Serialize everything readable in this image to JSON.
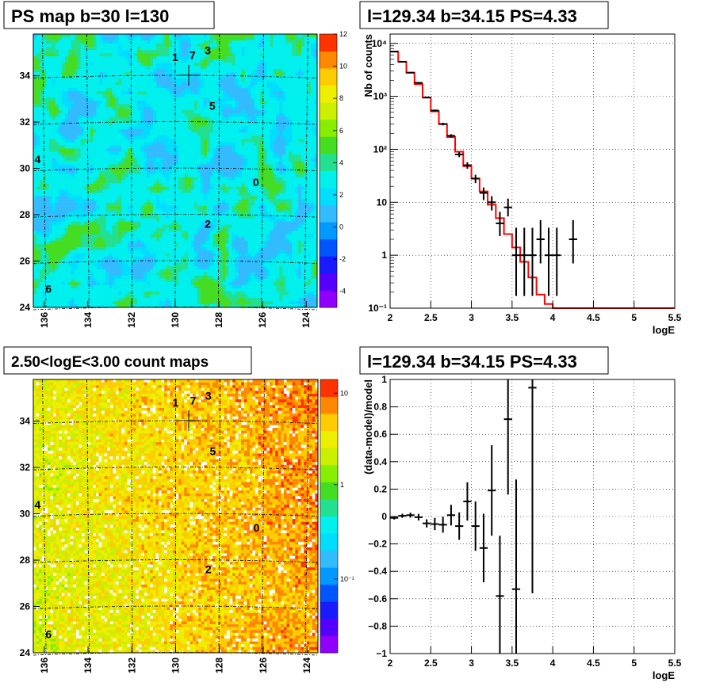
{
  "panels": {
    "ps_map": {
      "title": "PS map b=30 l=130",
      "x_ticks": [
        "136",
        "134",
        "132",
        "130",
        "128",
        "126",
        "124"
      ],
      "y_ticks": [
        "24",
        "26",
        "28",
        "30",
        "32",
        "34"
      ],
      "z_ticks": [
        "-4",
        "-2",
        "0",
        "2",
        "4",
        "6",
        "8",
        "10",
        "12"
      ],
      "sources": [
        {
          "label": "1",
          "l": 130.0,
          "b": 34.8
        },
        {
          "label": "7",
          "l": 129.2,
          "b": 34.9
        },
        {
          "label": "3",
          "l": 128.5,
          "b": 35.1
        },
        {
          "label": "5",
          "l": 128.3,
          "b": 32.7
        },
        {
          "label": "4",
          "l": 136.3,
          "b": 30.4
        },
        {
          "label": "0",
          "l": 126.3,
          "b": 29.4
        },
        {
          "label": "2",
          "l": 128.5,
          "b": 27.6
        },
        {
          "label": "6",
          "l": 135.8,
          "b": 24.8
        }
      ],
      "cross": {
        "l": 129.34,
        "b": 34.15
      },
      "palette": [
        "#8f00ff",
        "#5500ff",
        "#1a1aff",
        "#0055ff",
        "#0099ff",
        "#33bbff",
        "#00ddff",
        "#00f0ee",
        "#22e090",
        "#44dd22",
        "#88ee00",
        "#ccee00",
        "#eeee00",
        "#ffcc00",
        "#ff8800",
        "#ff3300"
      ],
      "background_color": "#00eef0",
      "l_range": [
        136.5,
        123.5
      ],
      "b_range": [
        24,
        35.8
      ]
    },
    "spectrum": {
      "title": "l=129.34 b=34.15 PS=4.33",
      "xlabel": "logE",
      "ylabel": "Nb of counts",
      "x_ticks": [
        "2",
        "2.5",
        "3",
        "3.5",
        "4",
        "4.5",
        "5",
        "5.5"
      ],
      "y_ticks": [
        "10⁻¹",
        "1",
        "10",
        "10²",
        "10³",
        "10⁴"
      ],
      "model_color": "#ff0000"
    },
    "count_map": {
      "title": "2.50<logE<3.00 count maps",
      "x_ticks": [
        "136",
        "134",
        "132",
        "130",
        "128",
        "126",
        "124"
      ],
      "y_ticks": [
        "24",
        "26",
        "28",
        "30",
        "32",
        "34"
      ],
      "z_ticks": [
        "10⁻¹",
        "1",
        "10"
      ],
      "palette": [
        "#8f00ff",
        "#5500ff",
        "#1a1aff",
        "#0055ff",
        "#0099ff",
        "#33bbff",
        "#00ddff",
        "#00f0ee",
        "#22e090",
        "#44dd22",
        "#88ee00",
        "#ccee00",
        "#eeee00",
        "#ffcc00",
        "#ff8800",
        "#ff3300"
      ]
    },
    "residual": {
      "title": "l=129.34 b=34.15 PS=4.33",
      "xlabel": "logE",
      "ylabel": "(data-model)/model",
      "x_ticks": [
        "2",
        "2.5",
        "3",
        "3.5",
        "4",
        "4.5",
        "5",
        "5.5"
      ],
      "y_ticks": [
        "−1",
        "−0.8",
        "−0.6",
        "−0.4",
        "−0.2",
        "0",
        "0.2",
        "0.4",
        "0.6",
        "0.8",
        "1"
      ]
    }
  },
  "chart_data": [
    {
      "type": "heatmap",
      "title": "PS map b=30 l=130",
      "x_ticks": [
        136,
        134,
        132,
        130,
        128,
        126,
        124
      ],
      "y_ticks": [
        24,
        26,
        28,
        30,
        32,
        34
      ],
      "xlim": [
        136.5,
        123.5
      ],
      "ylim": [
        24,
        35.8
      ],
      "zlim": [
        -5,
        12
      ],
      "z_ticks": [
        -4,
        -2,
        0,
        2,
        4,
        6,
        8,
        10,
        12
      ],
      "source_labels": [
        "1",
        "7",
        "3",
        "5",
        "4",
        "0",
        "2",
        "6"
      ]
    },
    {
      "type": "line",
      "title": "l=129.34 b=34.15 PS=4.33",
      "xlabel": "logE",
      "ylabel": "Nb of counts",
      "xlim": [
        2,
        5.5
      ],
      "ylim": [
        0.1,
        15000
      ],
      "yscale": "log",
      "grid": true,
      "series": [
        {
          "kind": "histogram",
          "bin_edges": [
            2.0,
            2.1,
            2.2,
            2.3,
            2.4,
            2.5,
            2.6,
            2.7,
            2.8,
            2.9,
            3.0,
            3.1,
            3.2,
            3.3,
            3.4,
            3.5,
            3.6,
            3.7,
            3.8,
            3.9,
            4.0,
            4.1,
            4.2,
            4.3,
            4.4,
            4.5,
            4.6,
            4.7,
            4.8,
            4.9,
            5.0,
            5.1,
            5.2,
            5.3,
            5.4,
            5.5
          ],
          "values": [
            7000,
            4500,
            2800,
            1700,
            950,
            520,
            300,
            170,
            90,
            48,
            28,
            16,
            9,
            5,
            2.5,
            1.4,
            0.75,
            0.38,
            0.18,
            0.12,
            0.1,
            0.1,
            0.1,
            0.1,
            0.1,
            0.1,
            0.1,
            0.1,
            0.1,
            0.1,
            0.1,
            0.1,
            0.1,
            0.1,
            0.1
          ]
        },
        {
          "kind": "points",
          "x": [
            2.05,
            2.15,
            2.25,
            2.35,
            2.45,
            2.55,
            2.65,
            2.75,
            2.85,
            2.95,
            3.05,
            3.15,
            3.25,
            3.35,
            3.45,
            3.55,
            3.65,
            3.75,
            3.85,
            3.95,
            4.05,
            4.25
          ],
          "y": [
            7000,
            4500,
            2800,
            1800,
            950,
            540,
            300,
            180,
            80,
            50,
            28,
            15,
            10,
            4,
            8,
            1,
            1,
            1,
            2,
            1,
            1,
            2
          ],
          "err_low": [
            80,
            65,
            50,
            40,
            30,
            23,
            17,
            13,
            9,
            7,
            5,
            4,
            3,
            1.7,
            2.6,
            0.83,
            0.83,
            0.83,
            1.3,
            0.83,
            0.83,
            1.3
          ],
          "err_high": [
            80,
            65,
            50,
            40,
            30,
            23,
            17,
            13,
            9,
            7,
            5,
            4,
            3,
            2.6,
            3.7,
            2.3,
            2.3,
            2.3,
            2.6,
            2.3,
            2.3,
            2.6
          ]
        }
      ]
    },
    {
      "type": "heatmap",
      "title": "2.50<logE<3.00 count maps",
      "x_ticks": [
        136,
        134,
        132,
        130,
        128,
        126,
        124
      ],
      "y_ticks": [
        24,
        26,
        28,
        30,
        32,
        34
      ],
      "xlim": [
        136.5,
        123.5
      ],
      "ylim": [
        24,
        35.8
      ],
      "zscale": "log",
      "z_ticks": [
        0.1,
        1,
        10
      ],
      "source_labels": [
        "1",
        "7",
        "3",
        "5",
        "4",
        "0",
        "2",
        "6"
      ]
    },
    {
      "type": "scatter",
      "title": "l=129.34 b=34.15 PS=4.33",
      "xlabel": "logE",
      "ylabel": "(data-model)/model",
      "xlim": [
        2,
        5.5
      ],
      "ylim": [
        -1,
        1
      ],
      "grid": true,
      "x": [
        2.05,
        2.15,
        2.25,
        2.35,
        2.45,
        2.55,
        2.65,
        2.75,
        2.85,
        2.95,
        3.05,
        3.15,
        3.25,
        3.35,
        3.45,
        3.55,
        3.75
      ],
      "y": [
        -0.01,
        0.005,
        0.01,
        -0.005,
        -0.05,
        -0.055,
        -0.06,
        0.01,
        -0.07,
        0.11,
        -0.07,
        -0.23,
        0.19,
        -0.58,
        0.71,
        -0.53,
        0.94
      ],
      "err": [
        0.012,
        0.015,
        0.018,
        0.024,
        0.03,
        0.044,
        0.058,
        0.075,
        0.1,
        0.14,
        0.18,
        0.25,
        0.33,
        0.44,
        0.55,
        0.8,
        1.5
      ]
    }
  ]
}
